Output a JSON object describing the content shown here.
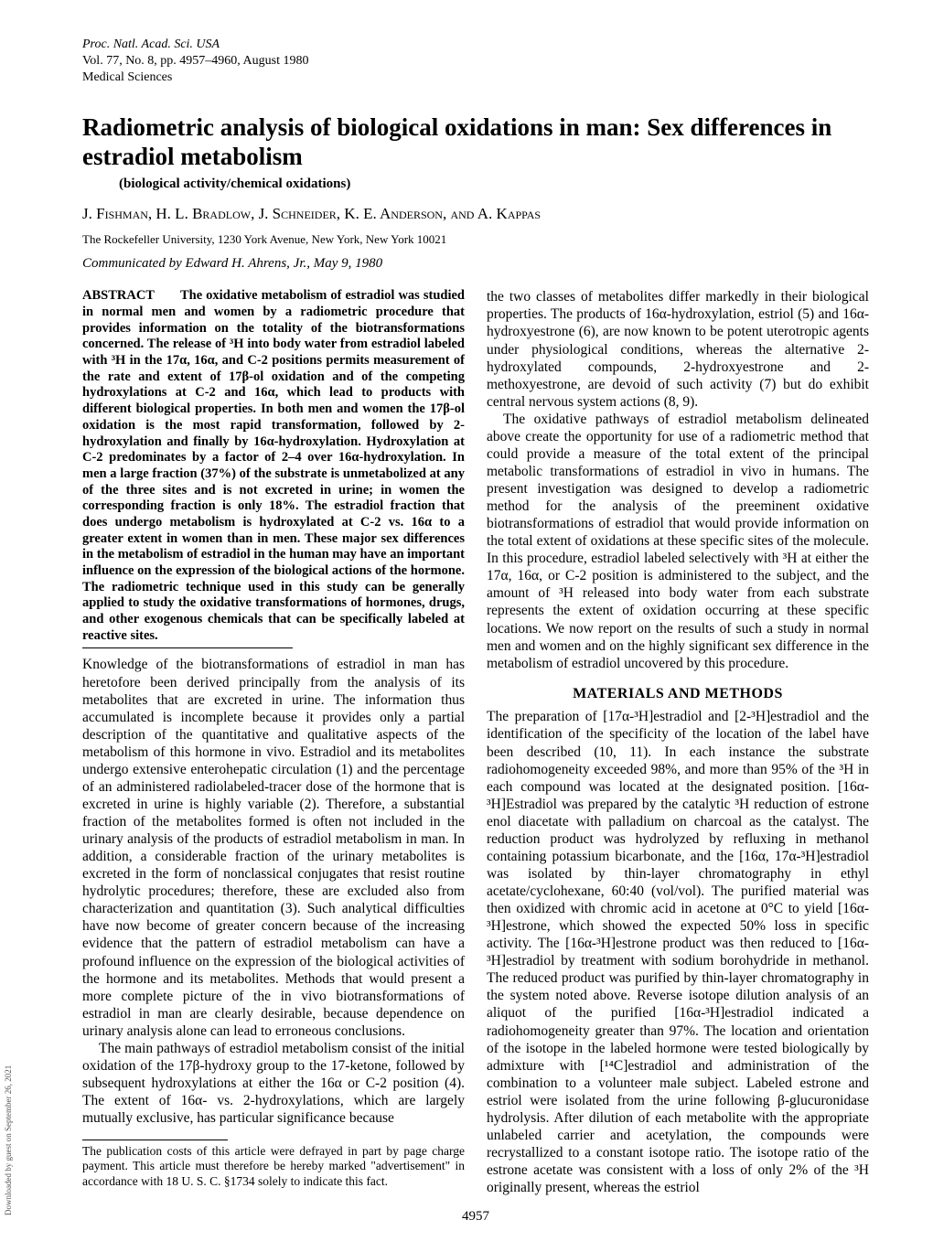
{
  "header": {
    "journal": "Proc. Natl. Acad. Sci. USA",
    "volume_line": "Vol. 77, No. 8, pp. 4957–4960, August 1980",
    "section": "Medical Sciences"
  },
  "title": "Radiometric analysis of biological oxidations in man: Sex differences in estradiol metabolism",
  "subtitle": "(biological activity/chemical oxidations)",
  "authors": "J. Fishman, H. L. Bradlow, J. Schneider, K. E. Anderson, and A. Kappas",
  "affiliation": "The Rockefeller University, 1230 York Avenue, New York, New York 10021",
  "communicated": "Communicated by Edward H. Ahrens, Jr., May 9, 1980",
  "abstract_label": "ABSTRACT",
  "abstract": "The oxidative metabolism of estradiol was studied in normal men and women by a radiometric procedure that provides information on the totality of the biotransformations concerned. The release of ³H into body water from estradiol labeled with ³H in the 17α, 16α, and C-2 positions permits measurement of the rate and extent of 17β-ol oxidation and of the competing hydroxylations at C-2 and 16α, which lead to products with different biological properties. In both men and women the 17β-ol oxidation is the most rapid transformation, followed by 2-hydroxylation and finally by 16α-hydroxylation. Hydroxylation at C-2 predominates by a factor of 2–4 over 16α-hydroxylation. In men a large fraction (37%) of the substrate is unmetabolized at any of the three sites and is not excreted in urine; in women the corresponding fraction is only 18%. The estradiol fraction that does undergo metabolism is hydroxylated at C-2 vs. 16α to a greater extent in women than in men. These major sex differences in the metabolism of estradiol in the human may have an important influence on the expression of the biological actions of the hormone. The radiometric technique used in this study can be generally applied to study the oxidative transformations of hormones, drugs, and other exogenous chemicals that can be specifically labeled at reactive sites.",
  "col1_para1": "Knowledge of the biotransformations of estradiol in man has heretofore been derived principally from the analysis of its metabolites that are excreted in urine. The information thus accumulated is incomplete because it provides only a partial description of the quantitative and qualitative aspects of the metabolism of this hormone in vivo. Estradiol and its metabolites undergo extensive enterohepatic circulation (1) and the percentage of an administered radiolabeled-tracer dose of the hormone that is excreted in urine is highly variable (2). Therefore, a substantial fraction of the metabolites formed is often not included in the urinary analysis of the products of estradiol metabolism in man. In addition, a considerable fraction of the urinary metabolites is excreted in the form of nonclassical conjugates that resist routine hydrolytic procedures; therefore, these are excluded also from characterization and quantitation (3). Such analytical difficulties have now become of greater concern because of the increasing evidence that the pattern of estradiol metabolism can have a profound influence on the expression of the biological activities of the hormone and its metabolites. Methods that would present a more complete picture of the in vivo biotransformations of estradiol in man are clearly desirable, because dependence on urinary analysis alone can lead to erroneous conclusions.",
  "col1_para2": "The main pathways of estradiol metabolism consist of the initial oxidation of the 17β-hydroxy group to the 17-ketone, followed by subsequent hydroxylations at either the 16α or C-2 position (4). The extent of 16α- vs. 2-hydroxylations, which are largely mutually exclusive, has particular significance because",
  "footnote": "The publication costs of this article were defrayed in part by page charge payment. This article must therefore be hereby marked \"advertisement\" in accordance with 18 U. S. C. §1734 solely to indicate this fact.",
  "col2_para1": "the two classes of metabolites differ markedly in their biological properties. The products of 16α-hydroxylation, estriol (5) and 16α-hydroxyestrone (6), are now known to be potent uterotropic agents under physiological conditions, whereas the alternative 2-hydroxylated compounds, 2-hydroxyestrone and 2-methoxyestrone, are devoid of such activity (7) but do exhibit central nervous system actions (8, 9).",
  "col2_para2": "The oxidative pathways of estradiol metabolism delineated above create the opportunity for use of a radiometric method that could provide a measure of the total extent of the principal metabolic transformations of estradiol in vivo in humans. The present investigation was designed to develop a radiometric method for the analysis of the preeminent oxidative biotransformations of estradiol that would provide information on the total extent of oxidations at these specific sites of the molecule. In this procedure, estradiol labeled selectively with ³H at either the 17α, 16α, or C-2 position is administered to the subject, and the amount of ³H released into body water from each substrate represents the extent of oxidation occurring at these specific locations. We now report on the results of such a study in normal men and women and on the highly significant sex difference in the metabolism of estradiol uncovered by this procedure.",
  "section_materials": "MATERIALS AND METHODS",
  "col2_para3": "The preparation of [17α-³H]estradiol and [2-³H]estradiol and the identification of the specificity of the location of the label have been described (10, 11). In each instance the substrate radiohomogeneity exceeded 98%, and more than 95% of the ³H in each compound was located at the designated position. [16α-³H]Estradiol was prepared by the catalytic ³H reduction of estrone enol diacetate with palladium on charcoal as the catalyst. The reduction product was hydrolyzed by refluxing in methanol containing potassium bicarbonate, and the [16α, 17α-³H]estradiol was isolated by thin-layer chromatography in ethyl acetate/cyclohexane, 60:40 (vol/vol). The purified material was then oxidized with chromic acid in acetone at 0°C to yield [16α-³H]estrone, which showed the expected 50% loss in specific activity. The [16α-³H]estrone product was then reduced to [16α-³H]estradiol by treatment with sodium borohydride in methanol. The reduced product was purified by thin-layer chromatography in the system noted above. Reverse isotope dilution analysis of an aliquot of the purified [16α-³H]estradiol indicated a radiohomogeneity greater than 97%. The location and orientation of the isotope in the labeled hormone were tested biologically by admixture with [¹⁴C]estradiol and administration of the combination to a volunteer male subject. Labeled estrone and estriol were isolated from the urine following β-glucuronidase hydrolysis. After dilution of each metabolite with the appropriate unlabeled carrier and acetylation, the compounds were recrystallized to a constant isotope ratio. The isotope ratio of the estrone acetate was consistent with a loss of only 2% of the ³H originally present, whereas the estriol",
  "page_number": "4957",
  "side_text": "Downloaded by guest on September 26, 2021"
}
